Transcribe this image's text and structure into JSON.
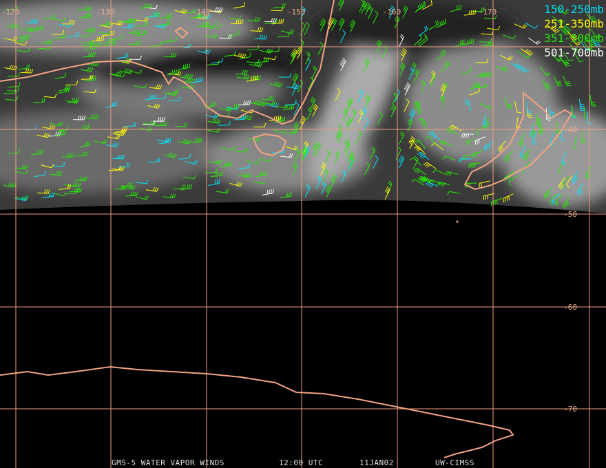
{
  "longitude_labels": [
    "-120",
    "-130",
    "-140",
    "-150",
    "-160",
    "-170"
  ],
  "latitude_labels": [
    "-40",
    "-50",
    "-60",
    "-70"
  ],
  "legend": [
    {
      "label": "150-250mb",
      "color": "#00e5ff"
    },
    {
      "label": "251-350mb",
      "color": "#ffff00"
    },
    {
      "label": "351-500mb",
      "color": "#22ee00"
    },
    {
      "label": "501-700mb",
      "color": "#ffffff"
    }
  ],
  "footer": [
    "GMS-5 WATER VAPOR WINDS",
    "12:00 UTC",
    "11JAN02",
    "UW-CIMSS"
  ]
}
